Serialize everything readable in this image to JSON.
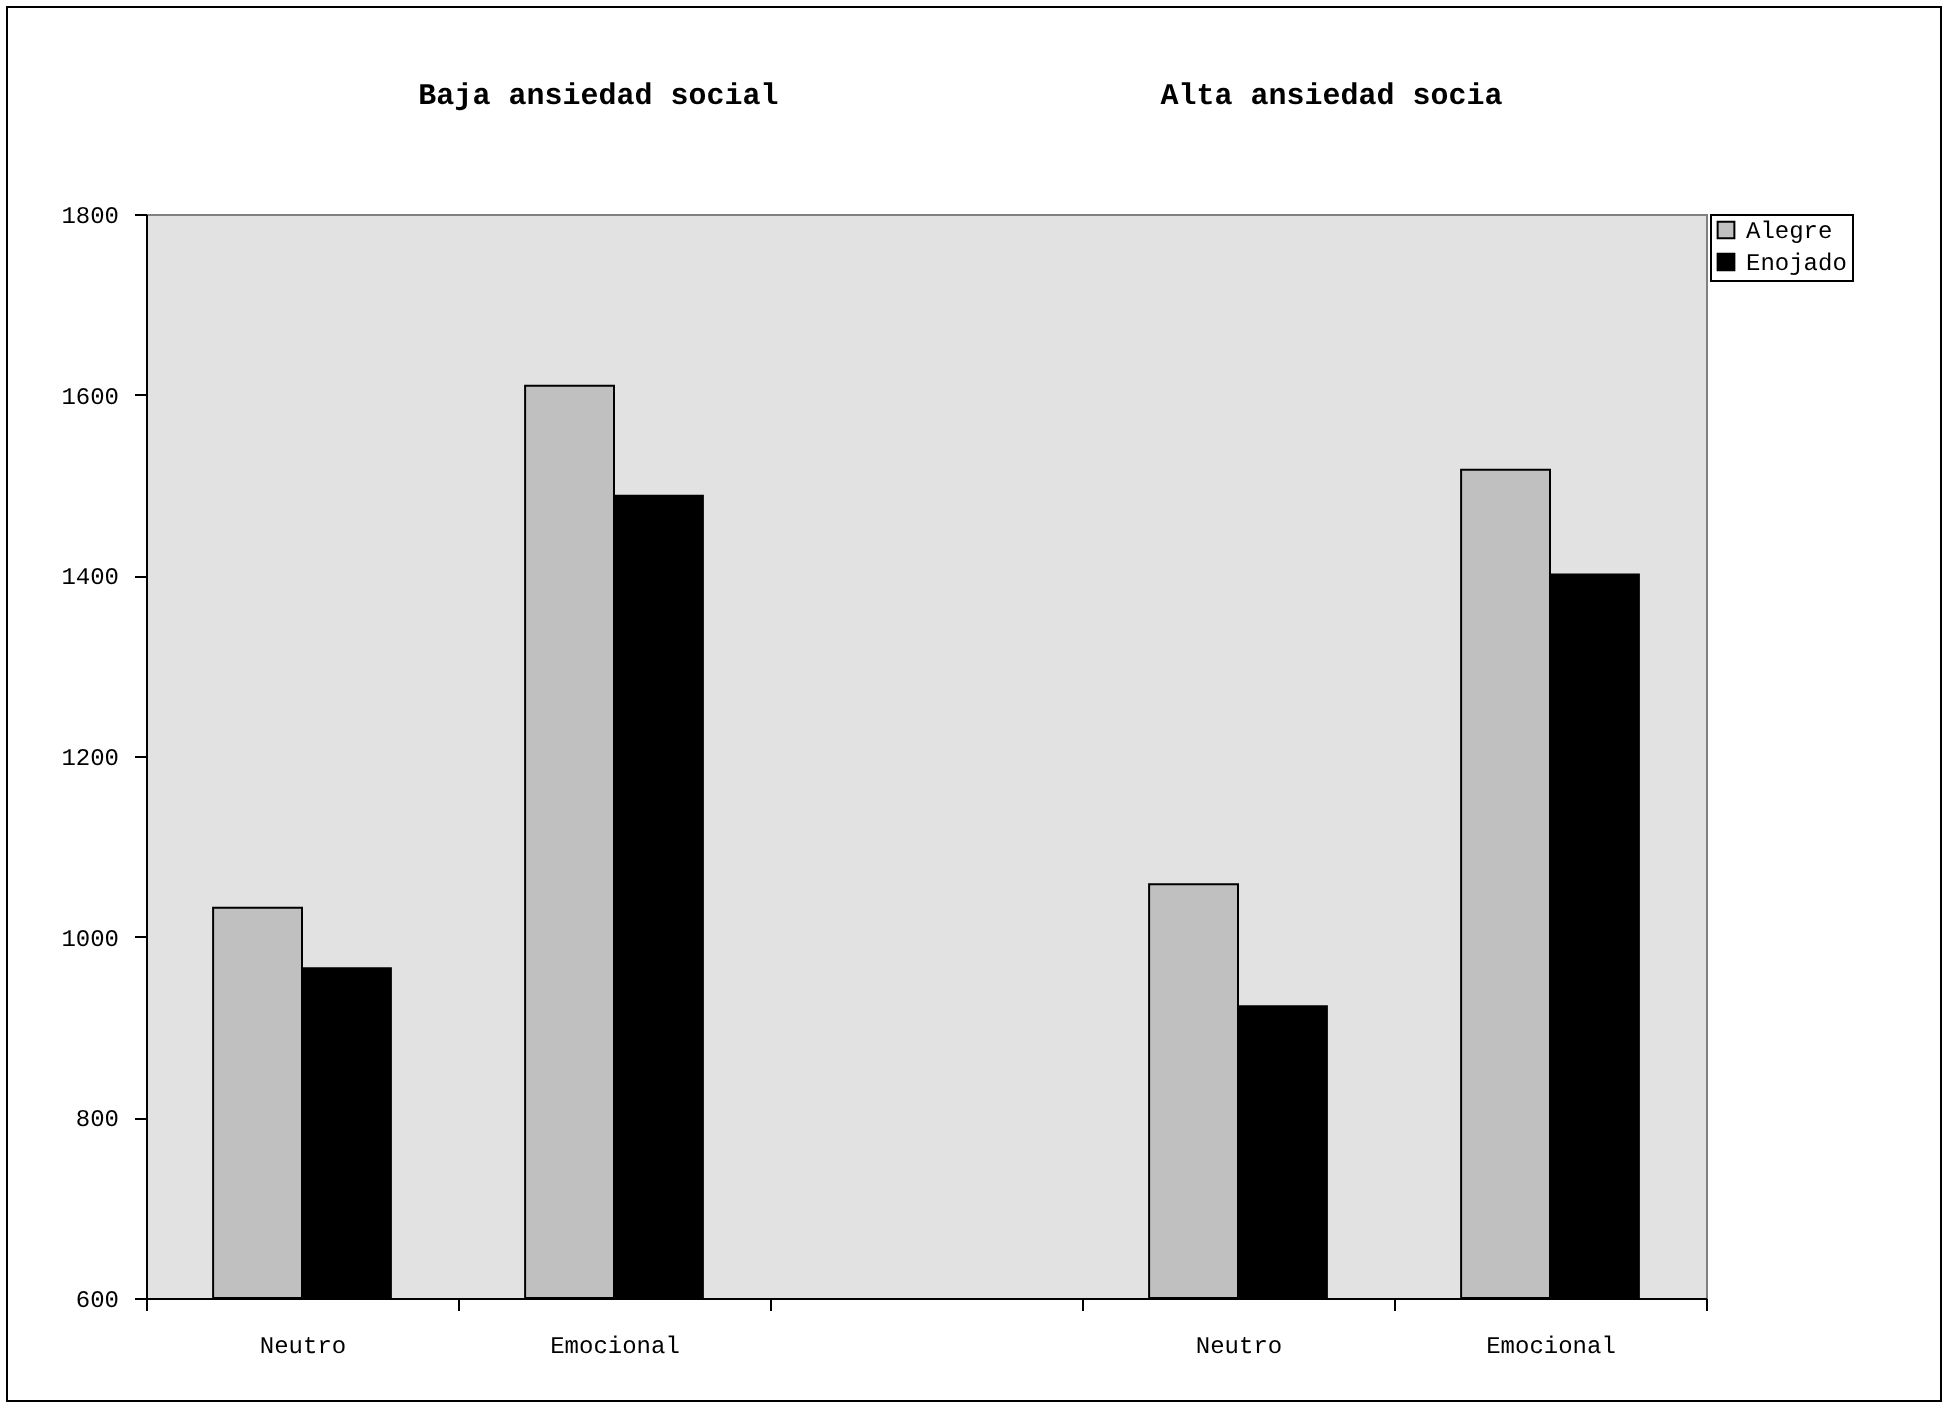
{
  "chart_data": {
    "type": "bar",
    "categories": [
      "Neutro",
      "Emocional",
      null,
      "Neutro",
      "Emocional"
    ],
    "series": [
      {
        "name": "Alegre",
        "color": "#c0c0c0",
        "values": [
          1032,
          1610,
          null,
          1058,
          1517
        ]
      },
      {
        "name": "Enojado",
        "color": "#000000",
        "values": [
          965,
          1488,
          null,
          923,
          1401
        ]
      }
    ],
    "annotations": [
      "Baja ansiedad social",
      "Alta ansiedad socia"
    ],
    "ylim": [
      600,
      1800
    ],
    "yticks": [
      600,
      800,
      1000,
      1200,
      1400,
      1600,
      1800
    ],
    "grid": false,
    "legend": "right"
  }
}
